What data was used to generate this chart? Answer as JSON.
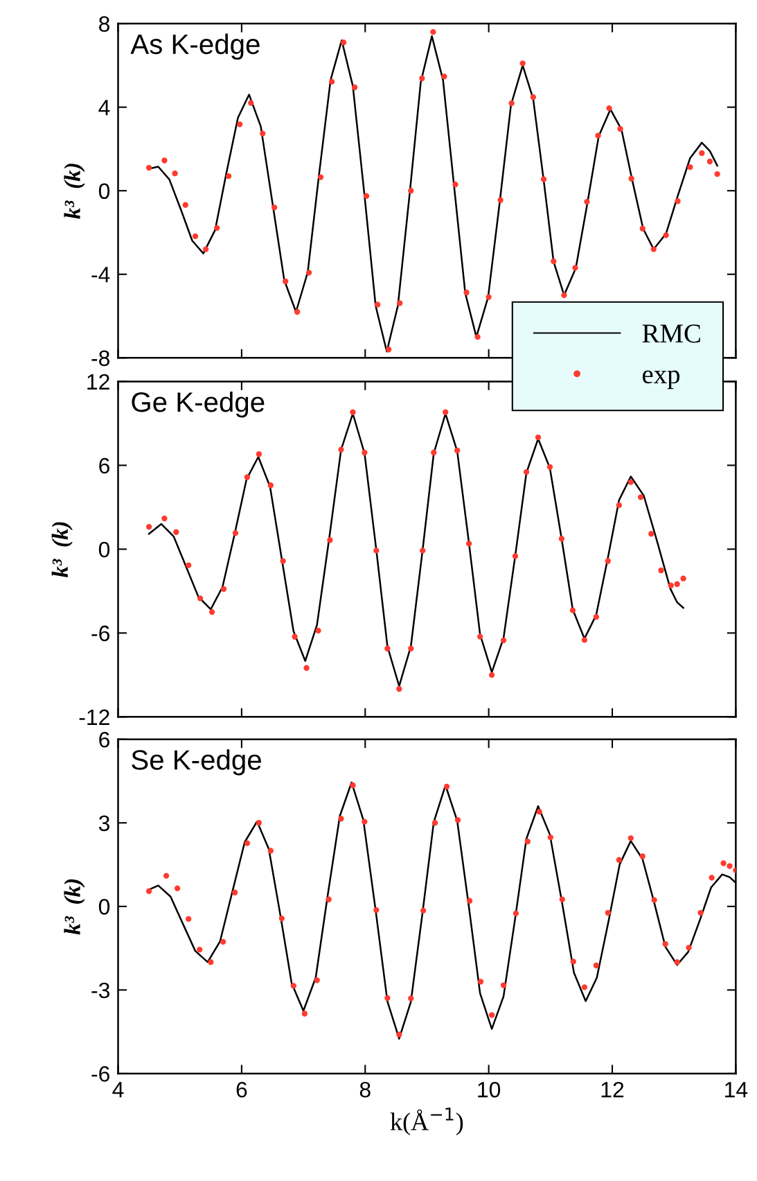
{
  "chart_data": [
    {
      "type": "line",
      "ylabel": "k³  (k)",
      "annotations": [
        "As K-edge"
      ],
      "xlim": [
        4,
        14
      ],
      "xticks": [
        4,
        6,
        8,
        10,
        12,
        14
      ],
      "ylim": [
        -8,
        8
      ],
      "yticks": [
        -8,
        -4,
        0,
        4,
        8
      ],
      "tick_labels": "y",
      "legend": "bottom right",
      "grid": false,
      "series": [
        {
          "name": "RMC",
          "color": "#000000",
          "x": [
            4.5,
            4.65,
            4.83,
            5.02,
            5.2,
            5.38,
            5.57,
            5.75,
            5.94,
            6.12,
            6.31,
            6.5,
            6.69,
            6.88,
            7.07,
            7.25,
            7.44,
            7.62,
            7.8,
            7.99,
            8.17,
            8.35,
            8.53,
            8.72,
            8.9,
            9.08,
            9.26,
            9.44,
            9.62,
            9.8,
            9.99,
            10.18,
            10.36,
            10.55,
            10.72,
            10.89,
            11.05,
            11.22,
            11.41,
            11.6,
            11.78,
            11.97,
            12.15,
            12.32,
            12.5,
            12.67,
            12.87,
            13.06,
            13.26,
            13.45,
            13.58,
            13.7
          ],
          "values": [
            1.05,
            1.15,
            0.54,
            -0.93,
            -2.39,
            -3.0,
            -1.89,
            0.8,
            3.49,
            4.6,
            3.08,
            -0.6,
            -4.28,
            -5.8,
            -3.9,
            0.7,
            5.3,
            7.2,
            5.02,
            -0.25,
            -5.52,
            -7.7,
            -5.5,
            -0.15,
            5.2,
            7.4,
            5.3,
            0.2,
            -4.9,
            -7.0,
            -5.1,
            -0.5,
            4.1,
            6.0,
            4.39,
            0.5,
            -3.39,
            -5.0,
            -3.7,
            -0.55,
            2.6,
            3.9,
            2.92,
            0.55,
            -1.82,
            -2.8,
            -2.06,
            -0.25,
            1.56,
            2.3,
            1.9,
            1.2
          ]
        },
        {
          "name": "exp",
          "type": "scatter",
          "color": "#ff3b2f",
          "x": [
            4.5,
            4.75,
            4.92,
            5.09,
            5.25,
            5.42,
            5.6,
            5.79,
            5.97,
            6.15,
            6.34,
            6.53,
            6.71,
            6.9,
            7.09,
            7.28,
            7.46,
            7.65,
            7.83,
            8.02,
            8.2,
            8.38,
            8.56,
            8.74,
            8.92,
            9.1,
            9.28,
            9.46,
            9.64,
            9.82,
            10.0,
            10.19,
            10.37,
            10.55,
            10.72,
            10.89,
            11.05,
            11.22,
            11.4,
            11.59,
            11.77,
            11.95,
            12.13,
            12.31,
            12.49,
            12.67,
            12.87,
            13.06,
            13.26,
            13.45,
            13.58,
            13.7
          ],
          "values": [
            1.1,
            1.45,
            0.83,
            -0.68,
            -2.18,
            -2.8,
            -1.78,
            0.7,
            3.18,
            4.2,
            2.74,
            -0.8,
            -4.34,
            -5.8,
            -3.92,
            0.65,
            5.22,
            7.1,
            4.95,
            -0.25,
            -5.45,
            -7.6,
            -5.38,
            0,
            5.38,
            7.6,
            5.47,
            0.3,
            -4.87,
            -7.0,
            -5.09,
            -0.45,
            4.19,
            6.1,
            4.48,
            0.55,
            -3.38,
            -5.0,
            -3.69,
            -0.53,
            2.64,
            3.95,
            2.96,
            0.58,
            -1.81,
            -2.8,
            -2.13,
            -0.5,
            1.13,
            1.8,
            1.4,
            0.8
          ]
        }
      ]
    },
    {
      "type": "line",
      "ylabel": "k³  (k)",
      "annotations": [
        "Ge K-edge"
      ],
      "xlim": [
        4,
        14
      ],
      "xticks": [
        4,
        6,
        8,
        10,
        12,
        14
      ],
      "ylim": [
        -12,
        12
      ],
      "yticks": [
        -12,
        -6,
        0,
        6,
        12
      ],
      "tick_labels": "y",
      "grid": false,
      "series": [
        {
          "color": "#000000",
          "x": [
            4.5,
            4.7,
            4.9,
            5.1,
            5.3,
            5.5,
            5.69,
            5.89,
            6.08,
            6.27,
            6.46,
            6.65,
            6.84,
            7.03,
            7.22,
            7.42,
            7.61,
            7.8,
            7.99,
            8.18,
            8.36,
            8.55,
            8.74,
            8.93,
            9.11,
            9.3,
            9.49,
            9.68,
            9.86,
            10.05,
            10.24,
            10.43,
            10.61,
            10.8,
            10.99,
            11.18,
            11.36,
            11.55,
            11.74,
            11.93,
            12.11,
            12.3,
            12.51,
            12.73,
            12.94,
            13.05,
            13.15
          ],
          "values": [
            1.1,
            1.8,
            0.91,
            -1.25,
            -3.41,
            -4.3,
            -2.71,
            1.15,
            5.01,
            6.6,
            4.47,
            -0.7,
            -5.87,
            -8.0,
            -5.42,
            0.85,
            7.12,
            9.7,
            6.85,
            -0.05,
            -6.95,
            -9.8,
            -6.95,
            -0.05,
            6.85,
            9.7,
            7.0,
            0.45,
            -6.1,
            -8.8,
            -6.36,
            -0.45,
            5.46,
            7.9,
            5.81,
            0.75,
            -4.31,
            -6.4,
            -4.71,
            -0.6,
            3.51,
            5.2,
            3.83,
            0.5,
            -2.83,
            -3.8,
            -4.2
          ]
        },
        {
          "type": "scatter",
          "color": "#ff3b2f",
          "x": [
            4.5,
            4.75,
            4.94,
            5.14,
            5.33,
            5.52,
            5.71,
            5.9,
            6.09,
            6.28,
            6.47,
            6.67,
            6.86,
            7.05,
            7.24,
            7.43,
            7.61,
            7.8,
            7.99,
            8.18,
            8.36,
            8.55,
            8.74,
            8.93,
            9.11,
            9.3,
            9.49,
            9.68,
            9.86,
            10.05,
            10.24,
            10.43,
            10.61,
            10.8,
            10.99,
            11.18,
            11.36,
            11.55,
            11.74,
            11.93,
            12.11,
            12.3,
            12.46,
            12.63,
            12.79,
            12.95,
            13.05,
            13.15
          ],
          "values": [
            1.6,
            2.2,
            1.22,
            -1.15,
            -3.52,
            -4.5,
            -2.85,
            1.15,
            5.15,
            6.8,
            4.57,
            -0.85,
            -6.27,
            -8.5,
            -5.83,
            0.65,
            7.13,
            9.8,
            6.91,
            -0.1,
            -7.11,
            -10.0,
            -7.11,
            -0.1,
            6.91,
            9.8,
            7.06,
            0.4,
            -6.26,
            -9.0,
            -6.52,
            -0.5,
            5.52,
            8.0,
            5.88,
            0.75,
            -4.38,
            -6.5,
            -4.85,
            -0.85,
            3.15,
            4.8,
            3.72,
            1.1,
            -1.52,
            -2.6,
            -2.5,
            -2.1
          ]
        }
      ]
    },
    {
      "type": "line",
      "xlabel": "k(Å$^{−1}$)",
      "ylabel": "k³  (k)",
      "annotations": [
        "Se K-edge"
      ],
      "xlim": [
        4,
        14
      ],
      "xticks": [
        4,
        6,
        8,
        10,
        12,
        14
      ],
      "ylim": [
        -6,
        6
      ],
      "yticks": [
        -6,
        -3,
        0,
        3,
        6
      ],
      "grid": false,
      "series": [
        {
          "color": "#000000",
          "x": [
            4.5,
            4.65,
            4.85,
            5.05,
            5.25,
            5.45,
            5.65,
            5.85,
            6.05,
            6.25,
            6.44,
            6.63,
            6.81,
            7.0,
            7.2,
            7.39,
            7.59,
            7.78,
            7.97,
            8.17,
            8.36,
            8.55,
            8.74,
            8.93,
            9.11,
            9.3,
            9.49,
            9.68,
            9.86,
            10.05,
            10.24,
            10.43,
            10.61,
            10.8,
            10.99,
            11.19,
            11.38,
            11.57,
            11.75,
            11.94,
            12.12,
            12.3,
            12.49,
            12.68,
            12.86,
            13.05,
            13.23,
            13.42,
            13.6,
            13.78,
            13.9,
            14.0
          ],
          "values": [
            0.6,
            0.75,
            0.35,
            -0.63,
            -1.6,
            -2.0,
            -1.26,
            0.53,
            2.31,
            3.05,
            2.06,
            -0.35,
            -2.76,
            -3.75,
            -2.55,
            0.35,
            3.25,
            4.45,
            3.11,
            -0.15,
            -3.41,
            -4.75,
            -3.42,
            -0.2,
            3.02,
            4.35,
            3.07,
            -0.03,
            -3.12,
            -4.4,
            -3.23,
            -0.4,
            2.43,
            3.6,
            2.58,
            0.1,
            -2.38,
            -3.4,
            -2.56,
            -0.53,
            1.51,
            2.35,
            1.7,
            0.13,
            -1.45,
            -2.1,
            -1.63,
            -0.48,
            0.68,
            1.15,
            1.05,
            0.85
          ]
        },
        {
          "type": "scatter",
          "color": "#ff3b2f",
          "x": [
            4.5,
            4.78,
            4.96,
            5.14,
            5.32,
            5.5,
            5.7,
            5.89,
            6.09,
            6.28,
            6.47,
            6.65,
            6.84,
            7.02,
            7.22,
            7.41,
            7.61,
            7.8,
            7.99,
            8.18,
            8.36,
            8.55,
            8.74,
            8.94,
            9.13,
            9.32,
            9.5,
            9.69,
            9.87,
            10.05,
            10.24,
            10.44,
            10.63,
            10.82,
            11.0,
            11.19,
            11.37,
            11.55,
            11.74,
            11.93,
            12.11,
            12.3,
            12.49,
            12.68,
            12.86,
            13.05,
            13.24,
            13.43,
            13.61,
            13.8,
            13.9,
            14.0
          ],
          "values": [
            0.55,
            1.1,
            0.65,
            -0.45,
            -1.55,
            -2.0,
            -1.27,
            0.5,
            2.27,
            3.0,
            2.0,
            -0.43,
            -2.85,
            -3.85,
            -2.65,
            0.25,
            3.15,
            4.35,
            3.04,
            -0.13,
            -3.29,
            -4.6,
            -3.3,
            -0.15,
            3.0,
            4.3,
            3.1,
            0.2,
            -2.7,
            -3.9,
            -2.83,
            -0.25,
            2.33,
            3.4,
            2.48,
            0.25,
            -1.98,
            -2.9,
            -2.12,
            -0.23,
            1.67,
            2.45,
            1.8,
            0.23,
            -1.35,
            -2.0,
            -1.48,
            -0.23,
            1.03,
            1.55,
            1.45,
            1.3
          ]
        }
      ]
    }
  ]
}
